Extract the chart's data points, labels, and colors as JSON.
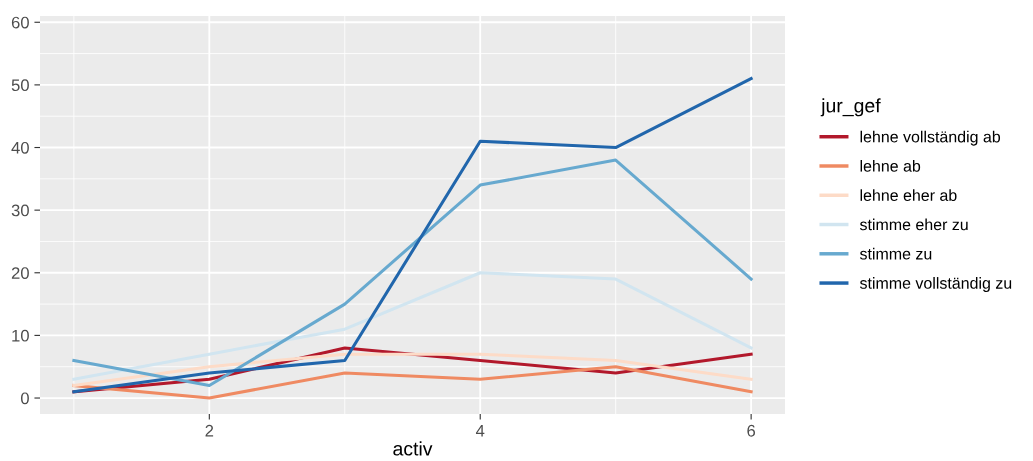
{
  "chart_data": {
    "type": "line",
    "xlabel": "activ",
    "legend_title": "jur_gef",
    "x": [
      1,
      2,
      3,
      4,
      5,
      6
    ],
    "xlim": [
      0.75,
      6.25
    ],
    "xticks": [
      2,
      4,
      6
    ],
    "ylim": [
      -2.55,
      61
    ],
    "yticks": [
      0,
      10,
      20,
      30,
      40,
      50,
      60
    ],
    "grid": true,
    "legend": "right",
    "series": [
      {
        "name": "lehne vollständig ab",
        "color": "#b2182b",
        "values": [
          1,
          3,
          8,
          6,
          4,
          7
        ]
      },
      {
        "name": "lehne ab",
        "color": "#ef8a62",
        "values": [
          2,
          0,
          4,
          3,
          5,
          1
        ]
      },
      {
        "name": "lehne eher ab",
        "color": "#fddbc7",
        "values": [
          2,
          5,
          7,
          7,
          6,
          3
        ]
      },
      {
        "name": "stimme eher zu",
        "color": "#d1e5f0",
        "values": [
          3,
          7,
          11,
          20,
          19,
          8
        ]
      },
      {
        "name": "stimme zu",
        "color": "#67a9cf",
        "values": [
          6,
          2,
          15,
          34,
          38,
          19
        ]
      },
      {
        "name": "stimme vollständig zu",
        "color": "#2166ac",
        "values": [
          1,
          4,
          6,
          41,
          40,
          51
        ]
      }
    ]
  }
}
